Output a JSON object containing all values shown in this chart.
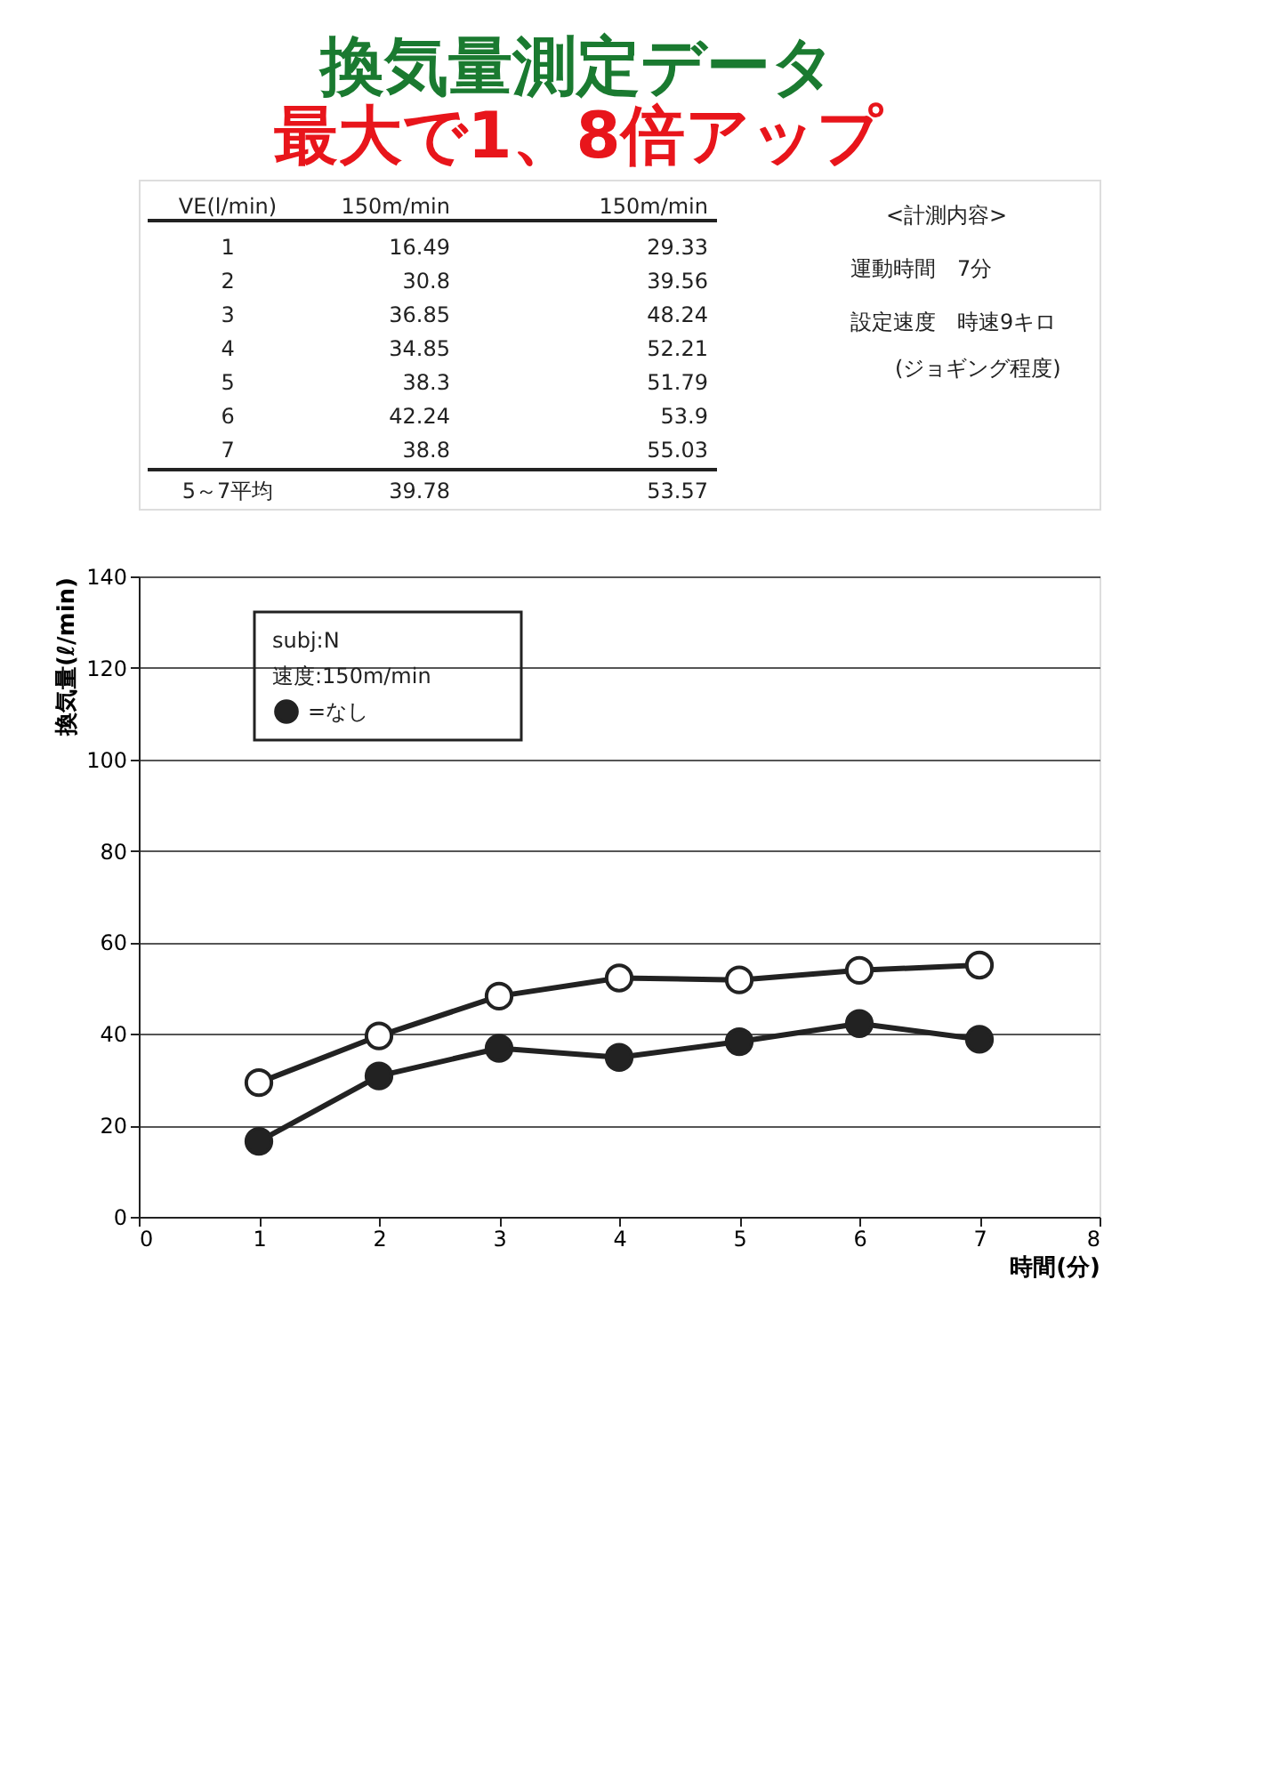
{
  "chart_data": {
    "type": "line",
    "title": "換気量測定データ",
    "subtitle": "最大で1、8倍アップ",
    "xlabel": "時間(分)",
    "ylabel": "換気量(ℓ/min)",
    "x": [
      1,
      2,
      3,
      4,
      5,
      6,
      7
    ],
    "series": [
      {
        "color": "#ffffff",
        "values": [
          29.33,
          39.56,
          48.24,
          52.21,
          51.79,
          53.9,
          55.03
        ]
      },
      {
        "name": "=なし",
        "color": "#222222",
        "values": [
          16.49,
          30.8,
          36.85,
          34.85,
          38.3,
          42.24,
          38.8
        ]
      }
    ],
    "xlim": [
      0,
      8
    ],
    "xticks": [
      0,
      1,
      2,
      3,
      4,
      5,
      6,
      7,
      8
    ],
    "ylim": [
      0,
      140
    ],
    "yticks": [
      0,
      20,
      40,
      60,
      80,
      100,
      120,
      140
    ],
    "grid": "y",
    "marker": "circle",
    "line_style": "solid",
    "legend": "top left",
    "legend_title": "subj:N\n速度:150m/min",
    "annotations": [
      "VE(l/min)",
      "150m/min",
      "150m/min",
      "1",
      "16.49",
      "29.33",
      "2",
      "30.8",
      "39.56",
      "3",
      "36.85",
      "48.24",
      "4",
      "34.85",
      "52.21",
      "5",
      "38.3",
      "51.79",
      "6",
      "42.24",
      "53.9",
      "7",
      "38.8",
      "55.03",
      "5～7平均",
      "39.78",
      "53.57",
      "<計測内容>",
      "運動時間　7分",
      "設定速度　時速9キロ",
      "(ジョギング程度)"
    ]
  }
}
